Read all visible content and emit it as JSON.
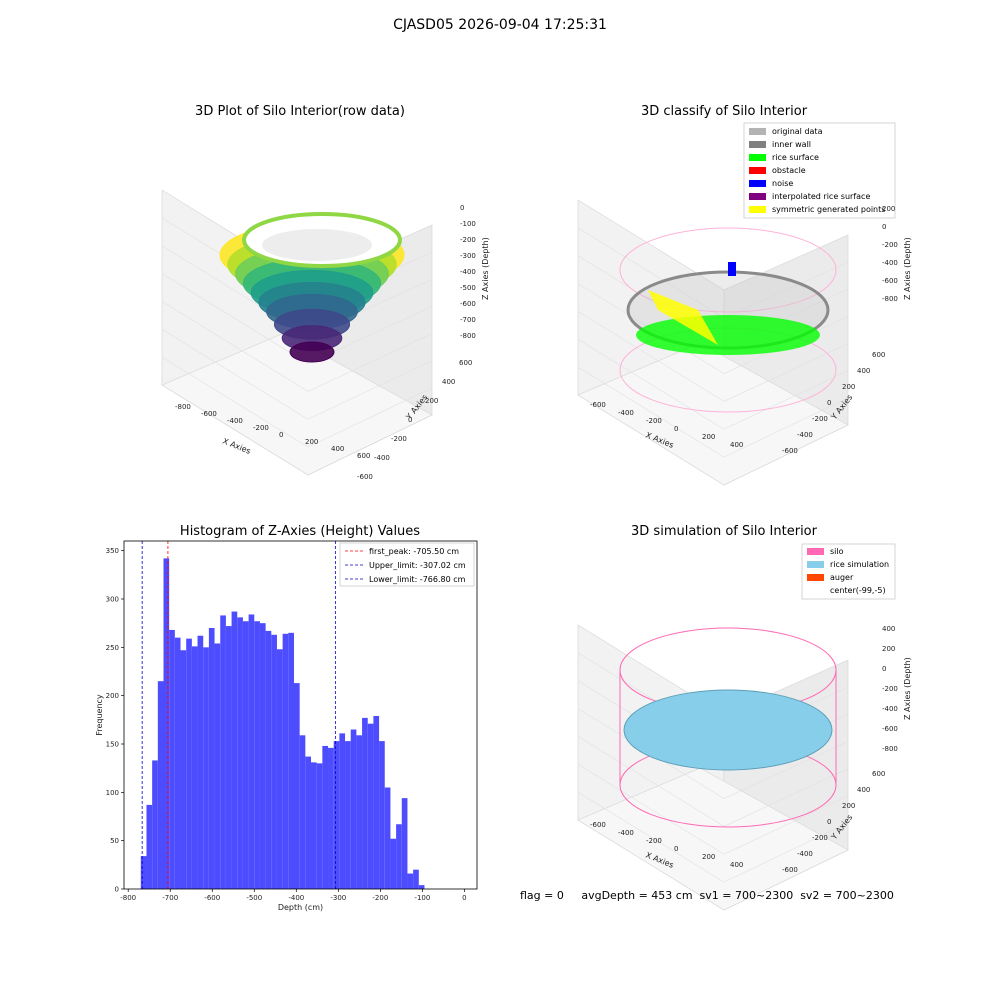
{
  "suptitle": "CJASD05 2026-09-04 17:25:31",
  "footer": "flag = 0     avgDepth = 453 cm  sv1 = 700~2300  sv2 = 700~2300",
  "chart_data": [
    {
      "type": "scatter",
      "projection": "3d",
      "title": "3D Plot of Silo Interior(row data)",
      "xlabel": "X Axies",
      "ylabel": "Y Axies",
      "zlabel": "Z Axies (Depth)",
      "xticks": [
        "-800",
        "-600",
        "-400",
        "-200",
        "0",
        "200",
        "400",
        "600"
      ],
      "yticks": [
        "-600",
        "-400",
        "-200",
        "0",
        "200",
        "400",
        "600"
      ],
      "zticks": [
        "0",
        "-100",
        "-200",
        "-300",
        "-400",
        "-500",
        "-600",
        "-700",
        "-800"
      ],
      "colormap": "viridis"
    },
    {
      "type": "scatter",
      "projection": "3d",
      "title": "3D classify of Silo Interior",
      "xlabel": "X Axies",
      "ylabel": "Y Axies",
      "zlabel": "Z Axies (Depth)",
      "xticks": [
        "-600",
        "-400",
        "-200",
        "0",
        "200",
        "400"
      ],
      "yticks": [
        "-600",
        "-400",
        "-200",
        "0",
        "200",
        "400",
        "600"
      ],
      "zticks": [
        "200",
        "0",
        "-200",
        "-400",
        "-600",
        "-800"
      ],
      "legend_position": "top-right",
      "legend": [
        {
          "label": "original data",
          "color": "#b3b3b3"
        },
        {
          "label": "inner wall",
          "color": "#808080"
        },
        {
          "label": "rice surface",
          "color": "#00ff00"
        },
        {
          "label": "obstacle",
          "color": "#ff0000"
        },
        {
          "label": "noise",
          "color": "#0000ff"
        },
        {
          "label": "interpolated rice surface",
          "color": "#800080"
        },
        {
          "label": "symmetric generated points",
          "color": "#ffff00"
        }
      ]
    },
    {
      "type": "bar",
      "title": "Histogram of Z-Axies (Height) Values",
      "xlabel": "Depth (cm)",
      "ylabel": "Frequency",
      "xlim": [
        -810,
        30
      ],
      "ylim": [
        0,
        360
      ],
      "xticks": [
        -800,
        -700,
        -600,
        -500,
        -400,
        -300,
        -200,
        -100,
        0
      ],
      "yticks": [
        0,
        50,
        100,
        150,
        200,
        250,
        300,
        350
      ],
      "bin_start": -770,
      "bin_width": 13.5,
      "values": [
        34,
        87,
        133,
        215,
        342,
        268,
        260,
        247,
        259,
        251,
        262,
        250,
        270,
        254,
        283,
        272,
        287,
        281,
        277,
        284,
        277,
        275,
        267,
        263,
        248,
        264,
        265,
        213,
        159,
        137,
        131,
        130,
        148,
        146,
        153,
        161,
        153,
        165,
        159,
        177,
        171,
        179,
        153,
        105,
        52,
        67,
        94,
        16,
        20,
        4
      ],
      "bar_color": "#4d4dff",
      "vlines": [
        {
          "x": -705.5,
          "label": "first_peak: -705.50 cm",
          "color": "#ff0000"
        },
        {
          "x": -307.02,
          "label": "Upper_limit: -307.02 cm",
          "color": "#0000cc"
        },
        {
          "x": -766.8,
          "label": "Lower_limit: -766.80 cm",
          "color": "#0000cc"
        }
      ],
      "legend_position": "top-right"
    },
    {
      "type": "area",
      "projection": "3d",
      "title": "3D simulation of Silo Interior",
      "xlabel": "X Axies",
      "ylabel": "Y Axies",
      "zlabel": "Z Axies (Depth)",
      "xticks": [
        "-600",
        "-400",
        "-200",
        "0",
        "200",
        "400"
      ],
      "yticks": [
        "-600",
        "-400",
        "-200",
        "0",
        "200",
        "400",
        "600"
      ],
      "zticks": [
        "400",
        "200",
        "0",
        "-200",
        "-400",
        "-600",
        "-800"
      ],
      "legend_position": "top-right",
      "legend": [
        {
          "label": "silo",
          "color": "#ff69b4"
        },
        {
          "label": "rice simulation",
          "color": "#87ceeb"
        },
        {
          "label": "auger",
          "color": "#ff4500"
        },
        {
          "label": "center(-99,-5)",
          "color": ""
        }
      ]
    }
  ]
}
